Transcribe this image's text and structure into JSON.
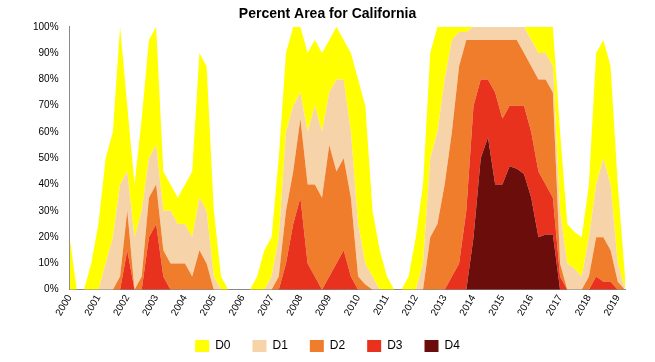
{
  "chart_data": {
    "type": "area",
    "title": "Percent Area for California",
    "stacked": true,
    "grid": false,
    "legend": "bottom",
    "categories": [
      "2000",
      null,
      null,
      null,
      "2001",
      null,
      null,
      null,
      "2002",
      null,
      null,
      null,
      "2003",
      null,
      null,
      null,
      "2004",
      null,
      null,
      null,
      "2005",
      null,
      null,
      null,
      "2006",
      null,
      null,
      null,
      "2007",
      null,
      null,
      null,
      "2008",
      null,
      null,
      null,
      "2009",
      null,
      null,
      null,
      "2010",
      null,
      null,
      null,
      "2011",
      null,
      null,
      null,
      "2012",
      null,
      null,
      null,
      "2013",
      null,
      null,
      null,
      "2014",
      null,
      null,
      null,
      "2015",
      null,
      null,
      null,
      "2016",
      null,
      null,
      null,
      "2017",
      null,
      null,
      null,
      "2018",
      null,
      null,
      null,
      "2019",
      null
    ],
    "ylim": [
      0,
      100
    ],
    "yticks": [
      {
        "value": 0,
        "label": "0%"
      },
      {
        "value": 10,
        "label": "10%"
      },
      {
        "value": 20,
        "label": "20%"
      },
      {
        "value": 30,
        "label": "30%"
      },
      {
        "value": 40,
        "label": "40%"
      },
      {
        "value": 50,
        "label": "50%"
      },
      {
        "value": 60,
        "label": "60%"
      },
      {
        "value": 70,
        "label": "70%"
      },
      {
        "value": 80,
        "label": "80%"
      },
      {
        "value": 90,
        "label": "90%"
      },
      {
        "value": 100,
        "label": "100%"
      }
    ],
    "series": [
      {
        "name": "D0",
        "color": "#ffff00",
        "values": [
          20,
          0,
          0,
          10,
          25,
          40,
          40,
          60,
          25,
          20,
          35,
          45,
          45,
          15,
          10,
          10,
          15,
          25,
          55,
          55,
          25,
          5,
          0,
          0,
          0,
          0,
          5,
          15,
          15,
          30,
          30,
          30,
          25,
          30,
          25,
          30,
          20,
          20,
          15,
          30,
          55,
          60,
          25,
          15,
          5,
          0,
          0,
          5,
          20,
          30,
          40,
          40,
          20,
          5,
          2,
          2,
          0,
          0,
          0,
          0,
          0,
          0,
          0,
          0,
          5,
          10,
          10,
          15,
          30,
          15,
          14,
          15,
          20,
          50,
          45,
          45,
          30,
          5
        ]
      },
      {
        "name": "D1",
        "color": "#f7d3aa",
        "values": [
          0,
          0,
          0,
          0,
          0,
          10,
          20,
          35,
          15,
          20,
          25,
          15,
          15,
          15,
          20,
          15,
          15,
          15,
          20,
          20,
          5,
          0,
          0,
          0,
          0,
          0,
          0,
          0,
          5,
          15,
          30,
          25,
          10,
          20,
          30,
          25,
          20,
          35,
          30,
          25,
          20,
          8,
          5,
          0,
          0,
          0,
          0,
          0,
          0,
          10,
          30,
          35,
          40,
          35,
          13,
          3,
          5,
          5,
          5,
          5,
          5,
          5,
          5,
          10,
          10,
          10,
          10,
          10,
          20,
          10,
          8,
          5,
          15,
          20,
          30,
          25,
          7,
          0
        ]
      },
      {
        "name": "D2",
        "color": "#ef7d2c",
        "values": [
          0,
          0,
          0,
          0,
          0,
          0,
          0,
          5,
          15,
          0,
          5,
          15,
          15,
          10,
          10,
          10,
          10,
          5,
          15,
          10,
          0,
          0,
          0,
          0,
          0,
          0,
          0,
          0,
          0,
          5,
          20,
          20,
          30,
          30,
          35,
          35,
          50,
          35,
          35,
          30,
          5,
          2,
          0,
          0,
          0,
          0,
          0,
          0,
          0,
          0,
          20,
          25,
          40,
          55,
          75,
          65,
          25,
          15,
          15,
          20,
          30,
          25,
          25,
          20,
          25,
          35,
          40,
          40,
          5,
          0,
          0,
          0,
          5,
          15,
          17,
          12,
          3,
          0
        ]
      },
      {
        "name": "D3",
        "color": "#e8321e",
        "values": [
          0,
          0,
          0,
          0,
          0,
          0,
          0,
          0,
          15,
          0,
          0,
          20,
          25,
          5,
          0,
          0,
          0,
          0,
          0,
          0,
          0,
          0,
          0,
          0,
          0,
          0,
          0,
          0,
          0,
          0,
          10,
          25,
          35,
          10,
          5,
          0,
          5,
          10,
          15,
          5,
          0,
          0,
          0,
          0,
          0,
          0,
          0,
          0,
          0,
          0,
          0,
          0,
          0,
          5,
          10,
          30,
          50,
          30,
          22,
          35,
          25,
          23,
          24,
          26,
          25,
          25,
          19,
          14,
          5,
          0,
          0,
          0,
          0,
          5,
          3,
          3,
          0,
          0
        ]
      },
      {
        "name": "D4",
        "color": "#6b0d0b",
        "values": [
          0,
          0,
          0,
          0,
          0,
          0,
          0,
          0,
          0,
          0,
          0,
          0,
          0,
          0,
          0,
          0,
          0,
          0,
          0,
          0,
          0,
          0,
          0,
          0,
          0,
          0,
          0,
          0,
          0,
          0,
          0,
          0,
          0,
          0,
          0,
          0,
          0,
          0,
          0,
          0,
          0,
          0,
          0,
          0,
          0,
          0,
          0,
          0,
          0,
          0,
          0,
          0,
          0,
          0,
          0,
          0,
          20,
          50,
          58,
          40,
          40,
          47,
          46,
          44,
          35,
          20,
          21,
          21,
          0,
          0,
          0,
          0,
          0,
          0,
          0,
          0,
          0,
          0
        ]
      }
    ]
  }
}
